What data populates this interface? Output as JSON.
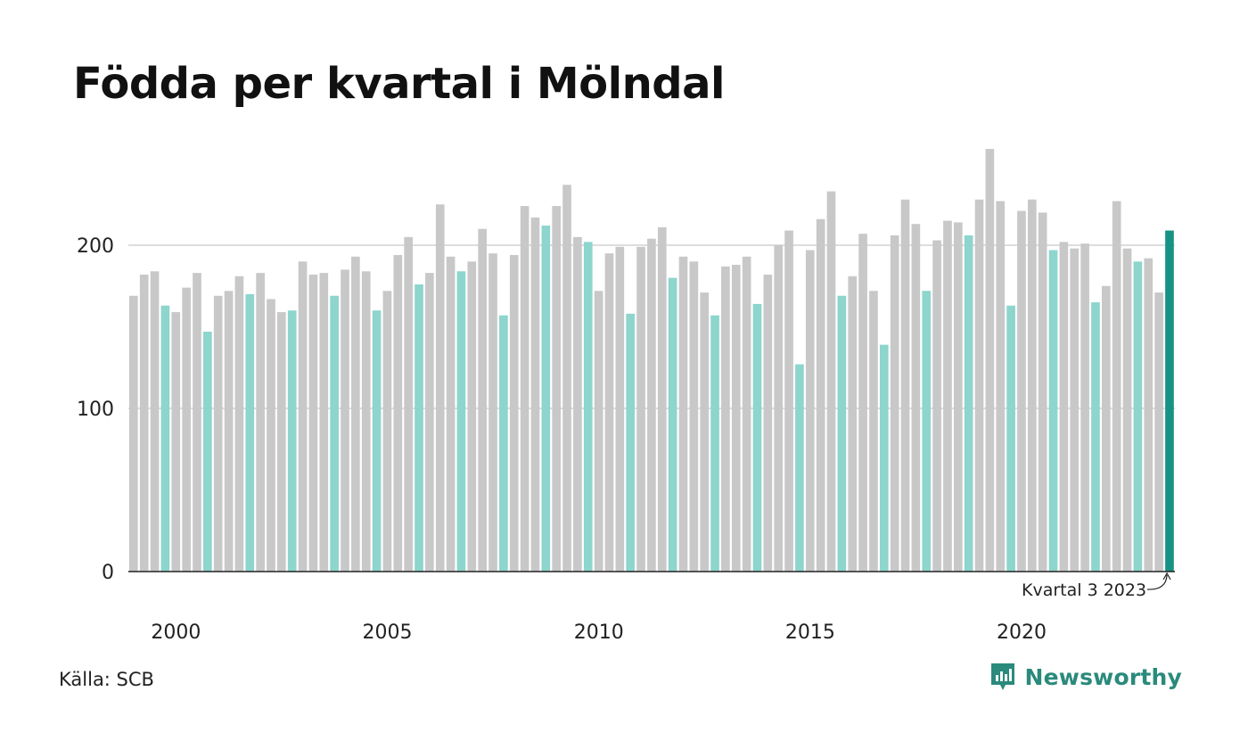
{
  "title": "Födda per kvartal i Mölndal",
  "source": "Källa: SCB",
  "brand": "Newsworthy",
  "colors": {
    "bar": "#c8c8c8",
    "q4": "#8dd5cd",
    "latest": "#169384",
    "grid": "#dddddd",
    "axis": "#222222"
  },
  "chart_data": {
    "type": "bar",
    "title": "Födda per kvartal i Mölndal",
    "xlabel": "",
    "ylabel": "",
    "ylim": [
      0,
      270
    ],
    "yticks": [
      0,
      100,
      200
    ],
    "xticks": [
      "2000",
      "2005",
      "2010",
      "2015",
      "2020"
    ],
    "grid": true,
    "start": {
      "year": 1999,
      "quarter": 1
    },
    "highlight_quarter": 4,
    "values": [
      169,
      182,
      184,
      163,
      159,
      174,
      183,
      147,
      169,
      172,
      181,
      170,
      183,
      167,
      159,
      160,
      190,
      182,
      183,
      169,
      185,
      193,
      184,
      160,
      172,
      194,
      205,
      176,
      183,
      225,
      193,
      184,
      190,
      210,
      195,
      157,
      194,
      224,
      217,
      212,
      224,
      237,
      205,
      202,
      172,
      195,
      199,
      158,
      199,
      204,
      211,
      180,
      193,
      190,
      171,
      157,
      187,
      188,
      193,
      164,
      182,
      200,
      209,
      127,
      197,
      216,
      233,
      169,
      181,
      207,
      172,
      139,
      206,
      228,
      213,
      172,
      203,
      215,
      214,
      206,
      228,
      259,
      227,
      163,
      221,
      228,
      220,
      197,
      202,
      198,
      201,
      165,
      175,
      227,
      198,
      190,
      192,
      171,
      209
    ],
    "annotation": {
      "text": "Kvartal 3 2023",
      "target_index": 98
    }
  }
}
